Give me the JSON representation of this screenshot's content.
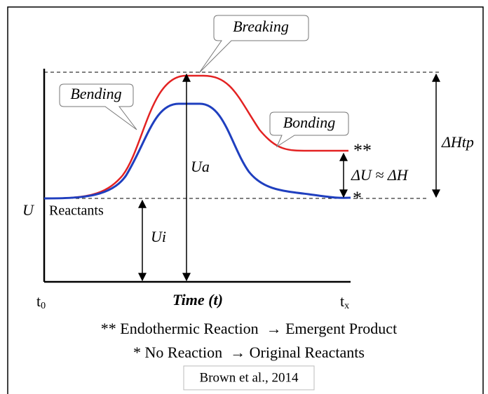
{
  "callouts": {
    "breaking": "Breaking",
    "bending": "Bending",
    "bonding": "Bonding"
  },
  "markers": {
    "endothermic": "**",
    "none": "*"
  },
  "labels": {
    "delta_htp": "ΔHtp",
    "delta_u": "ΔU ≈ ΔH",
    "u": "U",
    "reactants": "Reactants",
    "ui": "Ui",
    "ua": "Ua",
    "t0": {
      "base": "t",
      "sub": "0"
    },
    "time": "Time (t)",
    "tx": {
      "base": "t",
      "sub": "x"
    }
  },
  "legend": [
    "** Endothermic Reaction  → Emergent Product",
    "* No Reaction  → Original Reactants"
  ],
  "source": "Brown et al., 2014"
}
